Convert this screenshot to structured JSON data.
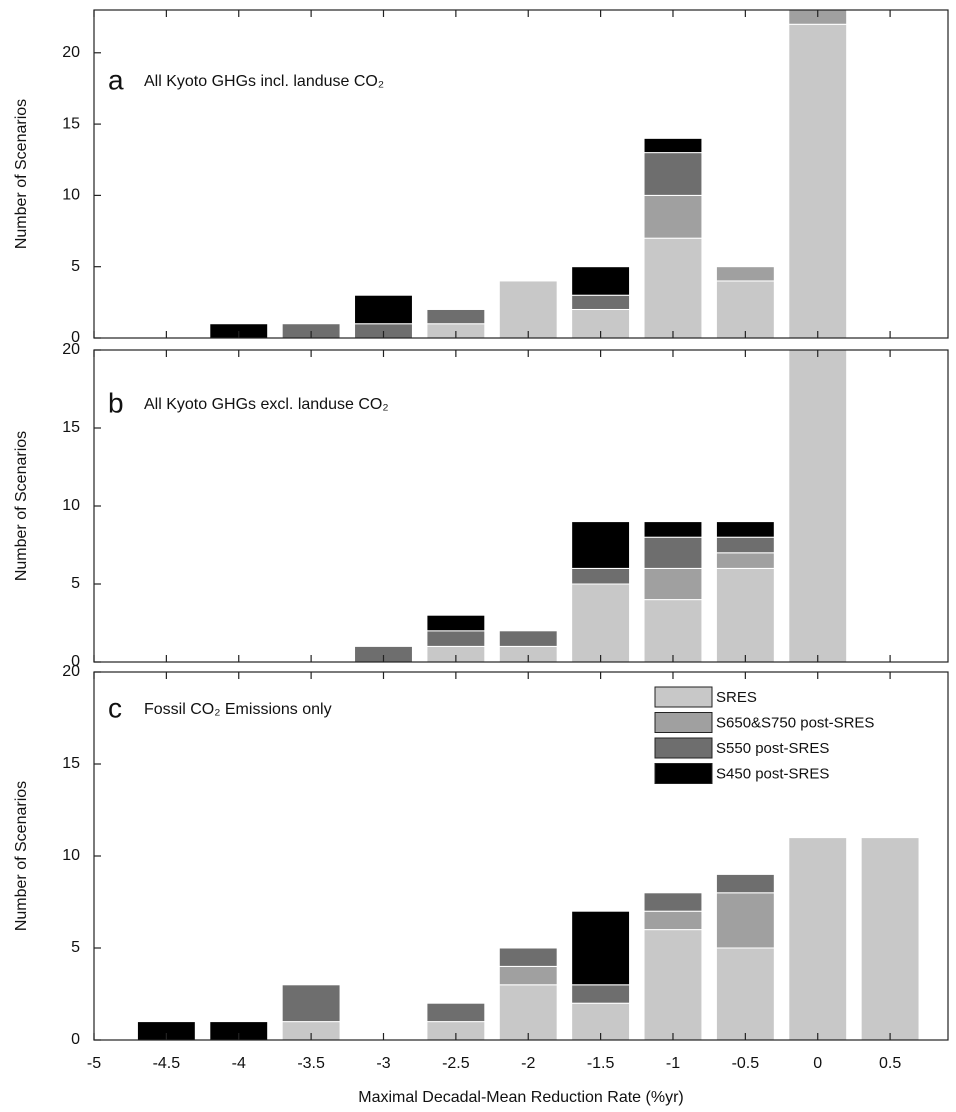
{
  "chart_data": [
    {
      "type": "bar",
      "stacked": true,
      "panel_label": "a",
      "title": "All Kyoto GHGs incl. landuse CO₂",
      "ylabel": "Number of Scenarios",
      "x": [
        -4.5,
        -4,
        -3.5,
        -3,
        -2.5,
        -2,
        -1.5,
        -1,
        -0.5,
        0,
        0.5
      ],
      "series": [
        {
          "color": "#c8c8c8",
          "values": [
            0,
            0,
            0,
            0,
            1,
            4,
            2,
            7,
            4,
            22,
            0
          ]
        },
        {
          "color": "#a0a0a0",
          "values": [
            0,
            0,
            0,
            0,
            0,
            0,
            0,
            3,
            1,
            1,
            0
          ]
        },
        {
          "color": "#6e6e6e",
          "values": [
            0,
            0,
            1,
            1,
            1,
            0,
            1,
            3,
            0,
            0,
            0
          ]
        },
        {
          "color": "#000000",
          "values": [
            0,
            1,
            0,
            2,
            0,
            0,
            2,
            1,
            0,
            0,
            0
          ]
        }
      ],
      "bar_width": 0.4,
      "xlim": [
        -5,
        0.9
      ],
      "xticks": [
        -5,
        -4.5,
        -4,
        -3.5,
        -3,
        -2.5,
        -2,
        -1.5,
        -1,
        -0.5,
        0,
        0.5
      ],
      "ylim": [
        0,
        23
      ],
      "yticks": [
        0,
        5,
        10,
        15,
        20
      ]
    },
    {
      "type": "bar",
      "stacked": true,
      "panel_label": "b",
      "title": "All Kyoto GHGs excl. landuse CO₂",
      "ylabel": "Number of Scenarios",
      "x": [
        -4.5,
        -4,
        -3.5,
        -3,
        -2.5,
        -2,
        -1.5,
        -1,
        -0.5,
        0,
        0.5
      ],
      "series": [
        {
          "color": "#c8c8c8",
          "values": [
            0,
            0,
            0,
            0,
            1,
            1,
            5,
            4,
            6,
            20,
            0
          ]
        },
        {
          "color": "#a0a0a0",
          "values": [
            0,
            0,
            0,
            0,
            0,
            0,
            0,
            2,
            1,
            0,
            0
          ]
        },
        {
          "color": "#6e6e6e",
          "values": [
            0,
            0,
            0,
            1,
            1,
            1,
            1,
            2,
            1,
            0,
            0
          ]
        },
        {
          "color": "#000000",
          "values": [
            0,
            0,
            0,
            0,
            1,
            0,
            3,
            1,
            1,
            0,
            0
          ]
        }
      ],
      "bar_width": 0.4,
      "xlim": [
        -5,
        0.9
      ],
      "xticks": [
        -5,
        -4.5,
        -4,
        -3.5,
        -3,
        -2.5,
        -2,
        -1.5,
        -1,
        -0.5,
        0,
        0.5
      ],
      "ylim": [
        0,
        20
      ],
      "yticks": [
        0,
        5,
        10,
        15,
        20
      ]
    },
    {
      "type": "bar",
      "stacked": true,
      "panel_label": "c",
      "title": "Fossil CO₂ Emissions only",
      "ylabel": "Number of Scenarios",
      "xlabel": "Maximal Decadal-Mean Reduction Rate (%yr)",
      "x": [
        -4.5,
        -4,
        -3.5,
        -3,
        -2.5,
        -2,
        -1.5,
        -1,
        -0.5,
        0,
        0.5
      ],
      "series": [
        {
          "name": "SRES",
          "color": "#c8c8c8",
          "values": [
            0,
            0,
            1,
            0,
            1,
            3,
            2,
            6,
            5,
            11,
            11
          ]
        },
        {
          "name": "S650&S750 post-SRES",
          "color": "#a0a0a0",
          "values": [
            0,
            0,
            0,
            0,
            0,
            1,
            0,
            1,
            3,
            0,
            0
          ]
        },
        {
          "name": "S550 post-SRES",
          "color": "#6e6e6e",
          "values": [
            0,
            0,
            2,
            0,
            1,
            1,
            1,
            1,
            1,
            0,
            0
          ]
        },
        {
          "name": "S450 post-SRES",
          "color": "#000000",
          "values": [
            1,
            1,
            0,
            0,
            0,
            0,
            4,
            0,
            0,
            0,
            0
          ]
        }
      ],
      "bar_width": 0.4,
      "xlim": [
        -5,
        0.9
      ],
      "xticks": [
        -5,
        -4.5,
        -4,
        -3.5,
        -3,
        -2.5,
        -2,
        -1.5,
        -1,
        -0.5,
        0,
        0.5
      ],
      "ylim": [
        0,
        20
      ],
      "yticks": [
        0,
        5,
        10,
        15,
        20
      ],
      "legend": "upper right"
    }
  ]
}
